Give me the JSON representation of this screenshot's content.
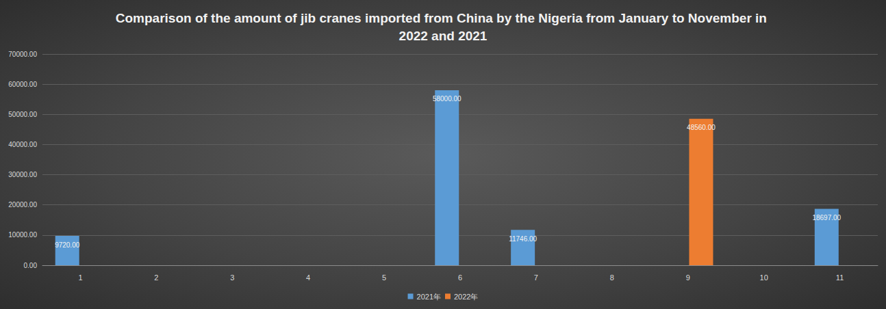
{
  "chart_data": {
    "type": "bar",
    "title": "Comparison of the amount of jib cranes imported from China by the Nigeria from January to November in 2022 and 2021",
    "categories": [
      "1",
      "2",
      "3",
      "4",
      "5",
      "6",
      "7",
      "8",
      "9",
      "10",
      "11"
    ],
    "series": [
      {
        "name": "2021年",
        "color": "#5b9bd5",
        "values": [
          9720,
          null,
          null,
          null,
          null,
          58000,
          11746,
          null,
          null,
          null,
          18697
        ],
        "value_labels": [
          "9720.00",
          null,
          null,
          null,
          null,
          "58000.00",
          "11746.00",
          null,
          null,
          null,
          "18697.00"
        ]
      },
      {
        "name": "2022年",
        "color": "#ed7d31",
        "values": [
          null,
          null,
          null,
          null,
          null,
          null,
          null,
          null,
          48560,
          null,
          null
        ],
        "value_labels": [
          null,
          null,
          null,
          null,
          null,
          null,
          null,
          null,
          "48560.00",
          null,
          null
        ]
      }
    ],
    "ylim": [
      0,
      70000
    ],
    "yticks": [
      {
        "value": 0,
        "label": "0.00"
      },
      {
        "value": 10000,
        "label": "10000.00"
      },
      {
        "value": 20000,
        "label": "20000.00"
      },
      {
        "value": 30000,
        "label": "30000.00"
      },
      {
        "value": 40000,
        "label": "40000.00"
      },
      {
        "value": 50000,
        "label": "50000.00"
      },
      {
        "value": 60000,
        "label": "60000.00"
      },
      {
        "value": 70000,
        "label": "70000.00"
      }
    ],
    "grid": true,
    "data_labels": true,
    "legend": "bottom"
  }
}
